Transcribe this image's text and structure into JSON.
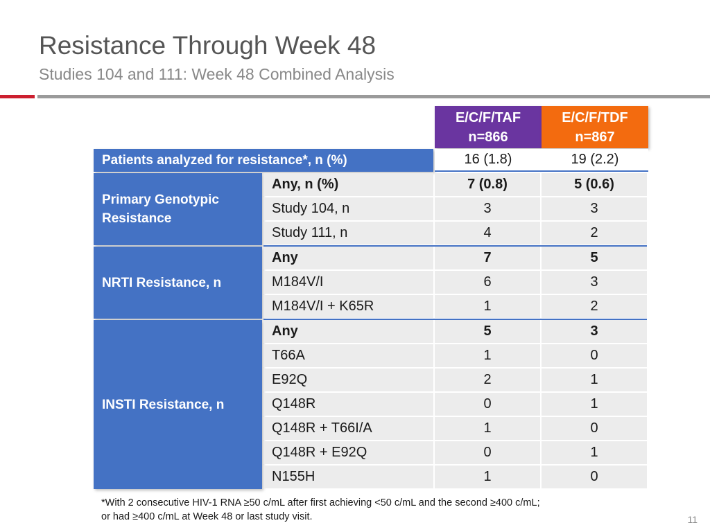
{
  "title": "Resistance Through Week 48",
  "subtitle": "Studies 104 and 111: Week 48 Combined Analysis",
  "columns": [
    {
      "name": "E/C/F/TAF",
      "n": "n=866",
      "color": "#6a35a0"
    },
    {
      "name": "E/C/F/TDF",
      "n": "n=867",
      "color": "#f36b0f"
    }
  ],
  "patients_row": {
    "label": "Patients analyzed for resistance*, n (%)",
    "taf": "16 (1.8)",
    "tdf": "19 (2.2)"
  },
  "groups": [
    {
      "label": "Primary Genotypic Resistance",
      "rows": [
        {
          "label": "Any, n (%)",
          "taf": "7 (0.8)",
          "tdf": "5 (0.6)",
          "bold": true
        },
        {
          "label": "Study 104, n",
          "taf": "3",
          "tdf": "3"
        },
        {
          "label": "Study 111, n",
          "taf": "4",
          "tdf": "2"
        }
      ]
    },
    {
      "label": "NRTI Resistance, n",
      "rows": [
        {
          "label": "Any",
          "taf": "7",
          "tdf": "5",
          "bold": true
        },
        {
          "label": "M184V/I",
          "taf": "6",
          "tdf": "3"
        },
        {
          "label": "M184V/I + K65R",
          "taf": "1",
          "tdf": "2"
        }
      ]
    },
    {
      "label": "INSTI Resistance, n",
      "rows": [
        {
          "label": "Any",
          "taf": "5",
          "tdf": "3",
          "bold": true
        },
        {
          "label": "T66A",
          "taf": "1",
          "tdf": "0"
        },
        {
          "label": "E92Q",
          "taf": "2",
          "tdf": "1"
        },
        {
          "label": "Q148R",
          "taf": "0",
          "tdf": "1"
        },
        {
          "label": "Q148R + T66I/A",
          "taf": "1",
          "tdf": "0"
        },
        {
          "label": "Q148R + E92Q",
          "taf": "0",
          "tdf": "1"
        },
        {
          "label": "N155H",
          "taf": "1",
          "tdf": "0"
        }
      ]
    }
  ],
  "footnote_line1": "*With 2 consecutive HIV-1 RNA ≥50 c/mL after first achieving <50 c/mL and the second ≥400 c/mL;",
  "footnote_line2": "or had ≥400 c/mL at Week 48 or last study visit.",
  "page_number": "11",
  "accent_colors": {
    "red": "#cc1f2f",
    "blue": "#4472c4"
  }
}
